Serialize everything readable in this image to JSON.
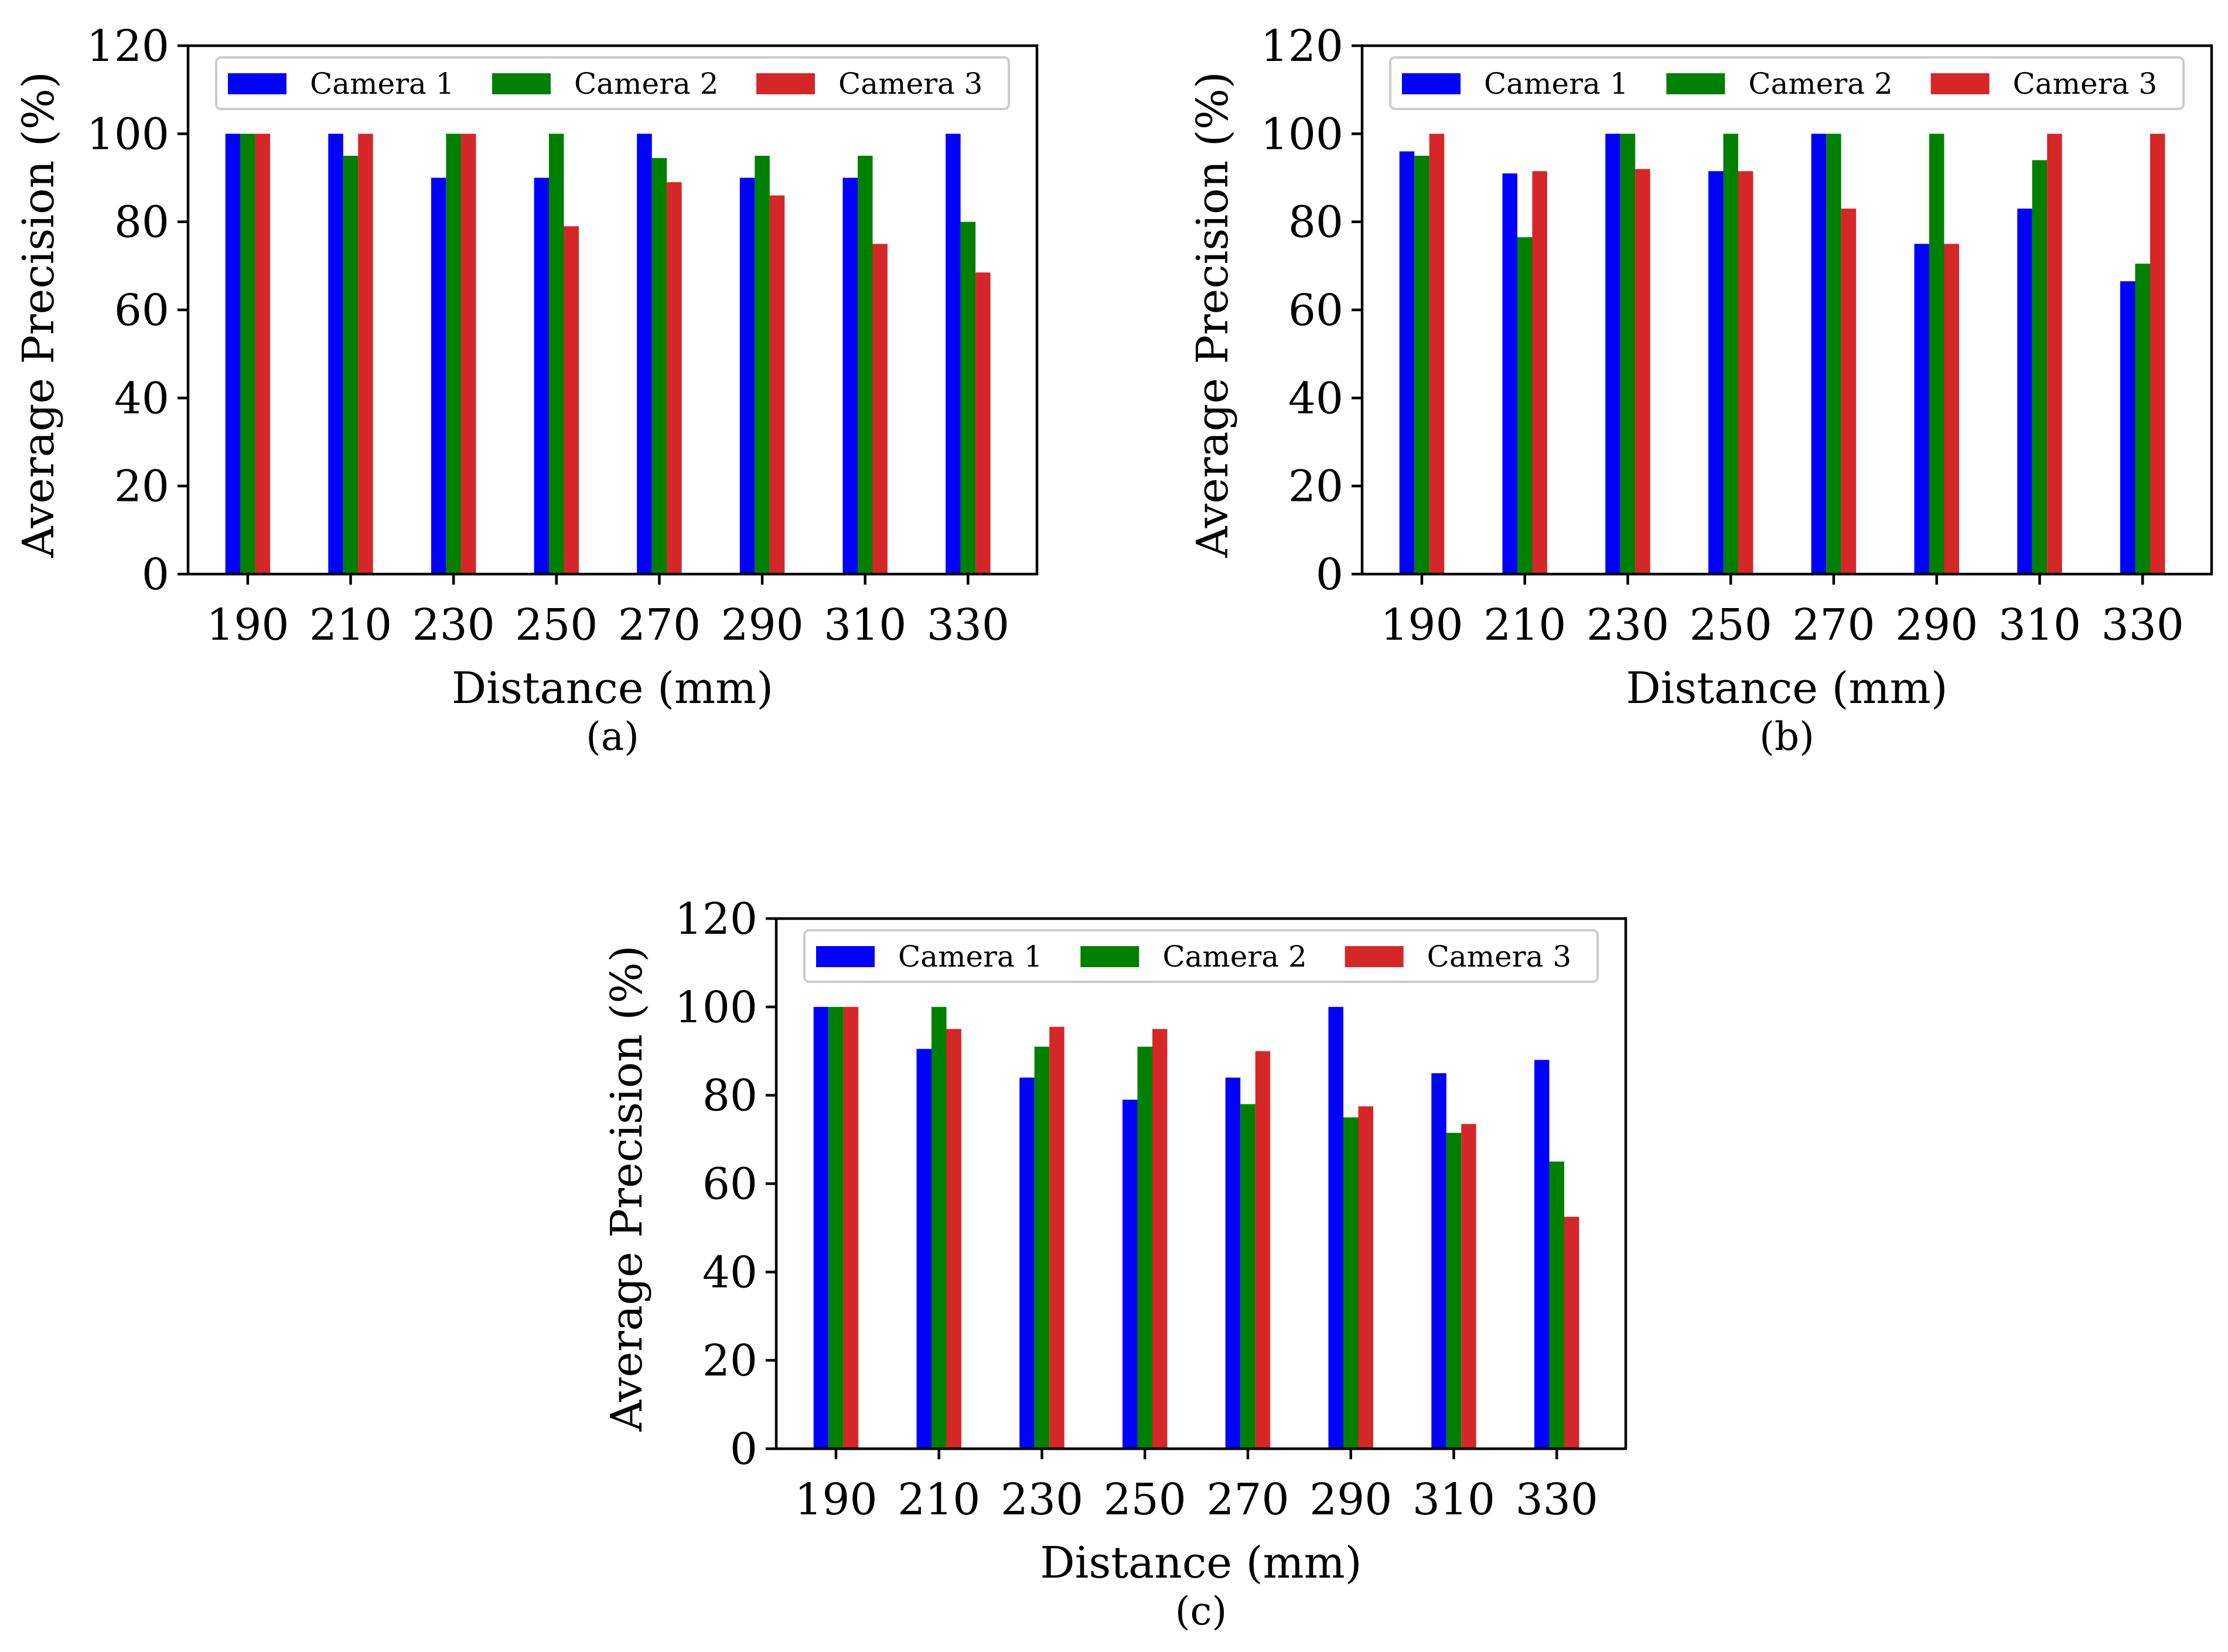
{
  "colors": {
    "camera1": "#0000ff",
    "camera2": "#008000",
    "camera3": "#d62728"
  },
  "chart_data": [
    {
      "type": "bar",
      "panel": "(a)",
      "xlabel": "Distance (mm)",
      "ylabel": "Average Precision (%)",
      "ylim": [
        0,
        120
      ],
      "yticks": [
        "0",
        "20",
        "40",
        "60",
        "80",
        "100",
        "120"
      ],
      "categories": [
        "190",
        "210",
        "230",
        "250",
        "270",
        "290",
        "310",
        "330"
      ],
      "legend": "top",
      "series": [
        {
          "name": "Camera 1",
          "values": [
            100,
            100,
            90,
            90,
            100,
            90,
            90,
            100
          ]
        },
        {
          "name": "Camera 2",
          "values": [
            100,
            95,
            100,
            100,
            94.5,
            95,
            95,
            80
          ]
        },
        {
          "name": "Camera 3",
          "values": [
            100,
            100,
            100,
            79,
            89,
            86,
            75,
            68.5
          ]
        }
      ]
    },
    {
      "type": "bar",
      "panel": "(b)",
      "xlabel": "Distance (mm)",
      "ylabel": "Average Precision (%)",
      "ylim": [
        0,
        120
      ],
      "yticks": [
        "0",
        "20",
        "40",
        "60",
        "80",
        "100",
        "120"
      ],
      "categories": [
        "190",
        "210",
        "230",
        "250",
        "270",
        "290",
        "310",
        "330"
      ],
      "legend": "top",
      "series": [
        {
          "name": "Camera 1",
          "values": [
            96,
            91,
            100,
            91.5,
            100,
            75,
            83,
            66.5
          ]
        },
        {
          "name": "Camera 2",
          "values": [
            95,
            76.5,
            100,
            100,
            100,
            100,
            94,
            70.5
          ]
        },
        {
          "name": "Camera 3",
          "values": [
            100,
            91.5,
            92,
            91.5,
            83,
            75,
            100,
            100
          ]
        }
      ]
    },
    {
      "type": "bar",
      "panel": "(c)",
      "xlabel": "Distance (mm)",
      "ylabel": "Average Precision (%)",
      "ylim": [
        0,
        120
      ],
      "yticks": [
        "0",
        "20",
        "40",
        "60",
        "80",
        "100",
        "120"
      ],
      "categories": [
        "190",
        "210",
        "230",
        "250",
        "270",
        "290",
        "310",
        "330"
      ],
      "legend": "top",
      "series": [
        {
          "name": "Camera 1",
          "values": [
            100,
            90.5,
            84,
            79,
            84,
            100,
            85,
            88
          ]
        },
        {
          "name": "Camera 2",
          "values": [
            100,
            100,
            91,
            91,
            78,
            75,
            71.5,
            65
          ]
        },
        {
          "name": "Camera 3",
          "values": [
            100,
            95,
            95.5,
            95,
            90,
            77.5,
            73.5,
            52.5
          ]
        }
      ]
    }
  ]
}
